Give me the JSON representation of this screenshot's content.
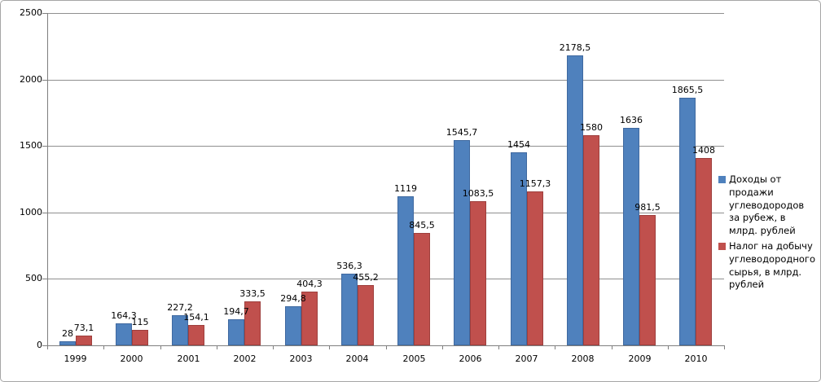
{
  "chart_data": {
    "type": "bar",
    "title": "",
    "categories": [
      "1999",
      "2000",
      "2001",
      "2002",
      "2003",
      "2004",
      "2005",
      "2006",
      "2007",
      "2008",
      "2009",
      "2010"
    ],
    "series": [
      {
        "name": "Доходы от продажи углеводородов за рубеж, в млрд. рублей",
        "color": "#4f81bd",
        "border_color": "#3f69a0",
        "values": [
          28,
          164.3,
          227.2,
          194.7,
          294.8,
          536.3,
          1119,
          1545.7,
          1454,
          2178.5,
          1636,
          1865.5
        ],
        "labels": [
          "28",
          "164,3",
          "227,2",
          "194,7",
          "294,8",
          "536,3",
          "1119",
          "1545,7",
          "1454",
          "2178,5",
          "1636",
          "1865,5"
        ]
      },
      {
        "name": "Налог на добычу углеводородного сырья, в млрд. рублей",
        "color": "#c0504d",
        "border_color": "#9e3f3d",
        "values": [
          73.1,
          115,
          154.1,
          333.5,
          404.3,
          455.2,
          845.5,
          1083.5,
          1157.3,
          1580,
          981.5,
          1408
        ],
        "labels": [
          "73,1",
          "115",
          "154,1",
          "333,5",
          "404,3",
          "455,2",
          "845,5",
          "1083,5",
          "1157,3",
          "1580",
          "981,5",
          "1408"
        ]
      }
    ],
    "xlabel": "",
    "ylabel": "",
    "ylim": [
      0,
      2500
    ],
    "ytick_interval": 500,
    "yticks": [
      "0",
      "500",
      "1000",
      "1500",
      "2000",
      "2500"
    ],
    "grid": true,
    "gridline_color": "#8f8f8f",
    "axis_color": "#7f7f7f",
    "legend_position": "right"
  }
}
